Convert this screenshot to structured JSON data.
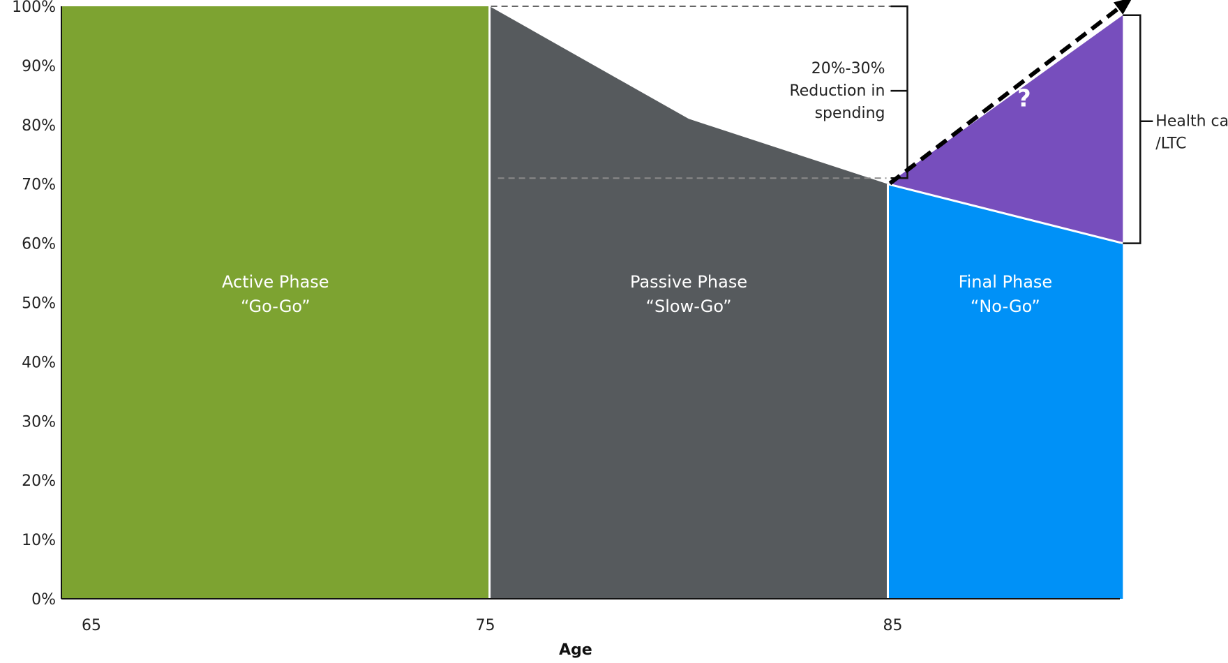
{
  "chart_data": {
    "type": "area",
    "xlabel": "Age",
    "x_ticks": [
      "65",
      "75",
      "85"
    ],
    "y_ticks": [
      "0%",
      "10%",
      "20%",
      "30%",
      "40%",
      "50%",
      "60%",
      "70%",
      "80%",
      "90%",
      "100%"
    ],
    "ylim": [
      0,
      100
    ],
    "x_range": [
      64.25,
      91
    ],
    "grid": false,
    "legend": "none",
    "series": [
      {
        "label_line1": "Active Phase",
        "label_line2": "“Go-Go”",
        "color": "#7da331",
        "points": [
          [
            64.25,
            100
          ],
          [
            75,
            100
          ]
        ]
      },
      {
        "label_line1": "Passive Phase",
        "label_line2": "“Slow-Go”",
        "color": "#565a5d",
        "points": [
          [
            75,
            100
          ],
          [
            80,
            81
          ],
          [
            85,
            70
          ]
        ]
      },
      {
        "label_line1": "Final Phase",
        "label_line2": "“No-Go”",
        "color": "#0091f7",
        "points": [
          [
            85,
            70
          ],
          [
            90.9,
            60
          ]
        ]
      }
    ],
    "health_care_wedge": {
      "label": "?",
      "color": "#774ebd",
      "points": [
        [
          85,
          70
        ],
        [
          90.9,
          98.5
        ],
        [
          90.9,
          60
        ]
      ]
    },
    "annotations": {
      "reduction": {
        "lines": [
          "20%-30%",
          "Reduction in",
          "spending"
        ],
        "from": 100,
        "to": 71
      },
      "health_care": {
        "lines": [
          "Health care",
          "/LTC"
        ],
        "from": 98.5,
        "to": 60
      }
    }
  }
}
